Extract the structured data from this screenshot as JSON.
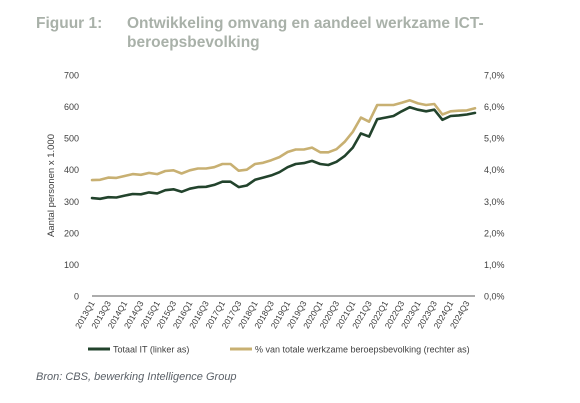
{
  "figure": {
    "label": "Figuur 1:",
    "title": "Ontwikkeling omvang en aandeel werkzame ICT-beroepsbevolking"
  },
  "source": "Bron: CBS, bewerking Intelligence Group",
  "chart_data": {
    "type": "line",
    "title": "Ontwikkeling omvang en aandeel werkzame ICT-beroepsbevolking",
    "ylabel": "Aantal personen x 1.000",
    "ylabel_right": "",
    "ylim": [
      0,
      700
    ],
    "ylim_right": [
      0,
      7
    ],
    "y_ticks": [
      "0",
      "100",
      "200",
      "300",
      "400",
      "500",
      "600",
      "700"
    ],
    "y_ticks_right": [
      "0,0%",
      "1,0%",
      "2,0%",
      "3,0%",
      "4,0%",
      "5,0%",
      "6,0%",
      "7,0%"
    ],
    "x_tick_labels": [
      "2013Q1",
      "2013Q3",
      "2014Q1",
      "2014Q3",
      "2015Q1",
      "2015Q3",
      "2016Q1",
      "2016Q3",
      "2017Q1",
      "2017Q3",
      "2018Q1",
      "2018Q3",
      "2019Q1",
      "2019Q3",
      "2020Q1",
      "2020Q3",
      "2021Q1",
      "2021Q3",
      "2022Q1",
      "2022Q3",
      "2023Q1",
      "2023Q3",
      "2024Q1",
      "2024Q3"
    ],
    "grid": false,
    "legend_position": "bottom",
    "colors": {
      "series1": "#22432c",
      "series2": "#c8b072",
      "axis": "#595959"
    },
    "series": [
      {
        "name": "Totaal IT (linker as)",
        "axis": "left",
        "x": [
          "2013Q1",
          "2013Q2",
          "2013Q3",
          "2013Q4",
          "2014Q1",
          "2014Q2",
          "2014Q3",
          "2014Q4",
          "2015Q1",
          "2015Q2",
          "2015Q3",
          "2015Q4",
          "2016Q1",
          "2016Q2",
          "2016Q3",
          "2016Q4",
          "2017Q1",
          "2017Q2",
          "2017Q3",
          "2017Q4",
          "2018Q1",
          "2018Q2",
          "2018Q3",
          "2018Q4",
          "2019Q1",
          "2019Q2",
          "2019Q3",
          "2019Q4",
          "2020Q1",
          "2020Q2",
          "2020Q3",
          "2020Q4",
          "2021Q1",
          "2021Q2",
          "2021Q3",
          "2021Q4",
          "2022Q1",
          "2022Q2",
          "2022Q3",
          "2022Q4",
          "2023Q1",
          "2023Q2",
          "2023Q3",
          "2023Q4",
          "2024Q1",
          "2024Q2",
          "2024Q3",
          "2024Q4"
        ],
        "values": [
          310,
          308,
          313,
          312,
          318,
          323,
          322,
          328,
          325,
          335,
          338,
          330,
          340,
          345,
          346,
          352,
          362,
          362,
          345,
          350,
          368,
          375,
          382,
          392,
          408,
          418,
          421,
          428,
          418,
          415,
          425,
          443,
          470,
          515,
          505,
          560,
          565,
          570,
          585,
          598,
          590,
          585,
          590,
          558,
          570,
          572,
          575,
          580
        ]
      },
      {
        "name": "% van totale werkzame beroepsbevolking (rechter as)",
        "axis": "right",
        "x": [
          "2013Q1",
          "2013Q2",
          "2013Q3",
          "2013Q4",
          "2014Q1",
          "2014Q2",
          "2014Q3",
          "2014Q4",
          "2015Q1",
          "2015Q2",
          "2015Q3",
          "2015Q4",
          "2016Q1",
          "2016Q2",
          "2016Q3",
          "2016Q4",
          "2017Q1",
          "2017Q2",
          "2017Q3",
          "2017Q4",
          "2018Q1",
          "2018Q2",
          "2018Q3",
          "2018Q4",
          "2019Q1",
          "2019Q2",
          "2019Q3",
          "2019Q4",
          "2020Q1",
          "2020Q2",
          "2020Q3",
          "2020Q4",
          "2021Q1",
          "2021Q2",
          "2021Q3",
          "2021Q4",
          "2022Q1",
          "2022Q2",
          "2022Q3",
          "2022Q4",
          "2023Q1",
          "2023Q2",
          "2023Q3",
          "2023Q4",
          "2024Q1",
          "2024Q2",
          "2024Q3",
          "2024Q4"
        ],
        "values": [
          3.67,
          3.68,
          3.75,
          3.74,
          3.8,
          3.86,
          3.84,
          3.9,
          3.86,
          3.96,
          3.98,
          3.88,
          3.98,
          4.04,
          4.04,
          4.08,
          4.18,
          4.18,
          3.97,
          4.0,
          4.18,
          4.22,
          4.3,
          4.4,
          4.56,
          4.64,
          4.64,
          4.7,
          4.55,
          4.55,
          4.65,
          4.88,
          5.2,
          5.65,
          5.52,
          6.05,
          6.05,
          6.05,
          6.12,
          6.2,
          6.1,
          6.05,
          6.08,
          5.75,
          5.85,
          5.87,
          5.88,
          5.95
        ]
      }
    ]
  }
}
